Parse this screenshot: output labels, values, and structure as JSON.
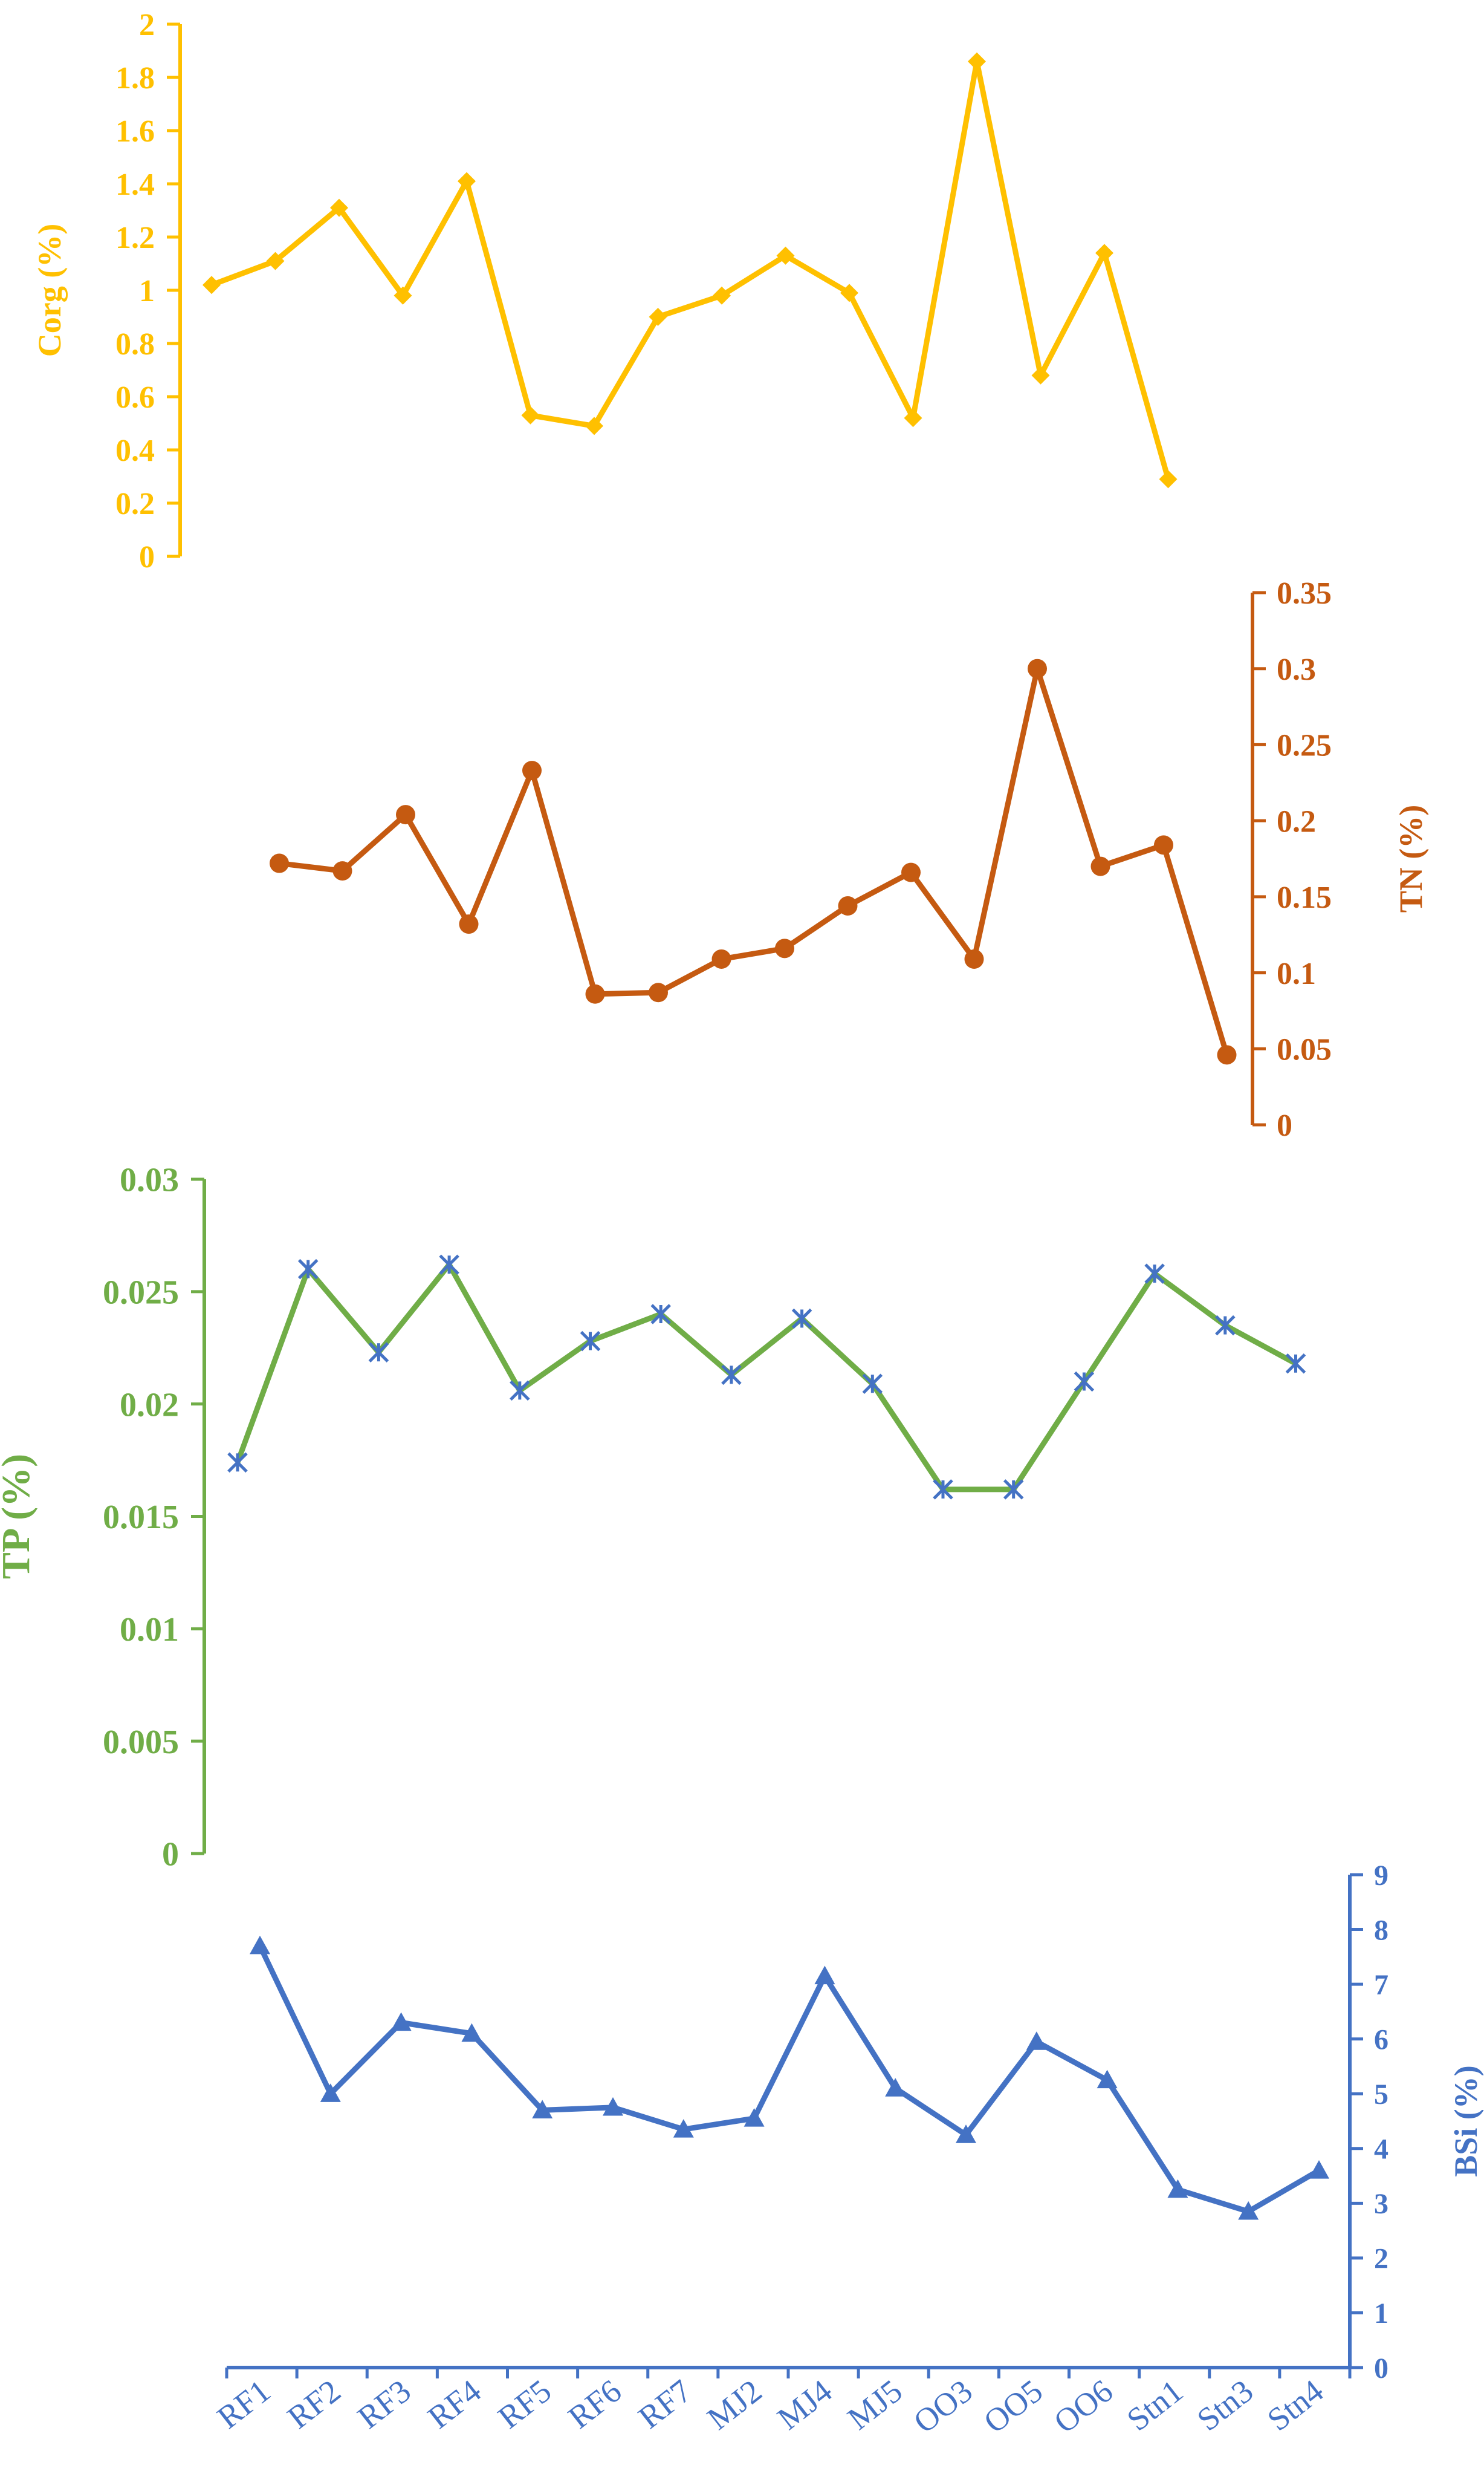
{
  "chart_data": [
    {
      "type": "line",
      "name": "corg-panel",
      "ylabel": "Corg (%)",
      "ylim": [
        0,
        2
      ],
      "yticks": [
        "0",
        "0.2",
        "0.4",
        "0.6",
        "0.8",
        "1",
        "1.2",
        "1.4",
        "1.6",
        "1.8",
        "2"
      ],
      "axis_side": "left",
      "marker": "diamond",
      "color": "#FFC000",
      "values": [
        1.02,
        1.11,
        1.31,
        0.98,
        1.41,
        0.53,
        0.49,
        0.9,
        0.98,
        1.13,
        0.99,
        0.52,
        1.86,
        0.68,
        1.14,
        0.29
      ]
    },
    {
      "type": "line",
      "name": "tn-panel",
      "ylabel": "TN (%)",
      "ylim": [
        0,
        0.35
      ],
      "yticks": [
        "0",
        "0.05",
        "0.1",
        "0.15",
        "0.2",
        "0.25",
        "0.3",
        "0.35"
      ],
      "axis_side": "right",
      "marker": "circle",
      "color": "#C55A11",
      "values": [
        0.172,
        0.167,
        0.204,
        0.132,
        0.233,
        0.086,
        0.087,
        0.109,
        0.116,
        0.144,
        0.166,
        0.109,
        0.3,
        0.17,
        0.184,
        0.046
      ]
    },
    {
      "type": "line",
      "name": "tp-panel",
      "ylabel": "TP (%)",
      "ylim": [
        0,
        0.03
      ],
      "yticks": [
        "0",
        "0.005",
        "0.01",
        "0.015",
        "0.02",
        "0.025",
        "0.03"
      ],
      "axis_side": "left",
      "marker": "star",
      "color": "#70AD47",
      "marker_color": "#4472C4",
      "values": [
        0.0174,
        0.026,
        0.0223,
        0.0262,
        0.0206,
        0.0228,
        0.024,
        0.0213,
        0.0238,
        0.0209,
        0.0162,
        0.0162,
        0.021,
        0.0258,
        0.0235,
        0.0218
      ]
    },
    {
      "type": "line",
      "name": "bsi-panel",
      "ylabel": "BSi (%)",
      "ylim": [
        0,
        9
      ],
      "yticks": [
        "0",
        "1",
        "2",
        "3",
        "4",
        "5",
        "6",
        "7",
        "8",
        "9"
      ],
      "axis_side": "right",
      "marker": "triangle",
      "color": "#4472C4",
      "categories": [
        "RF1",
        "RF2",
        "RF3",
        "RF4",
        "RF5",
        "RF6",
        "RF7",
        "MJ2",
        "MJ4",
        "MJ5",
        "OO3",
        "OO5",
        "OO6",
        "Stn1",
        "Stn3",
        "Stn4"
      ],
      "values": [
        7.7,
        5.0,
        6.3,
        6.1,
        4.7,
        4.75,
        4.35,
        4.55,
        7.15,
        5.1,
        4.25,
        5.95,
        5.25,
        3.25,
        2.85,
        3.6
      ]
    }
  ]
}
